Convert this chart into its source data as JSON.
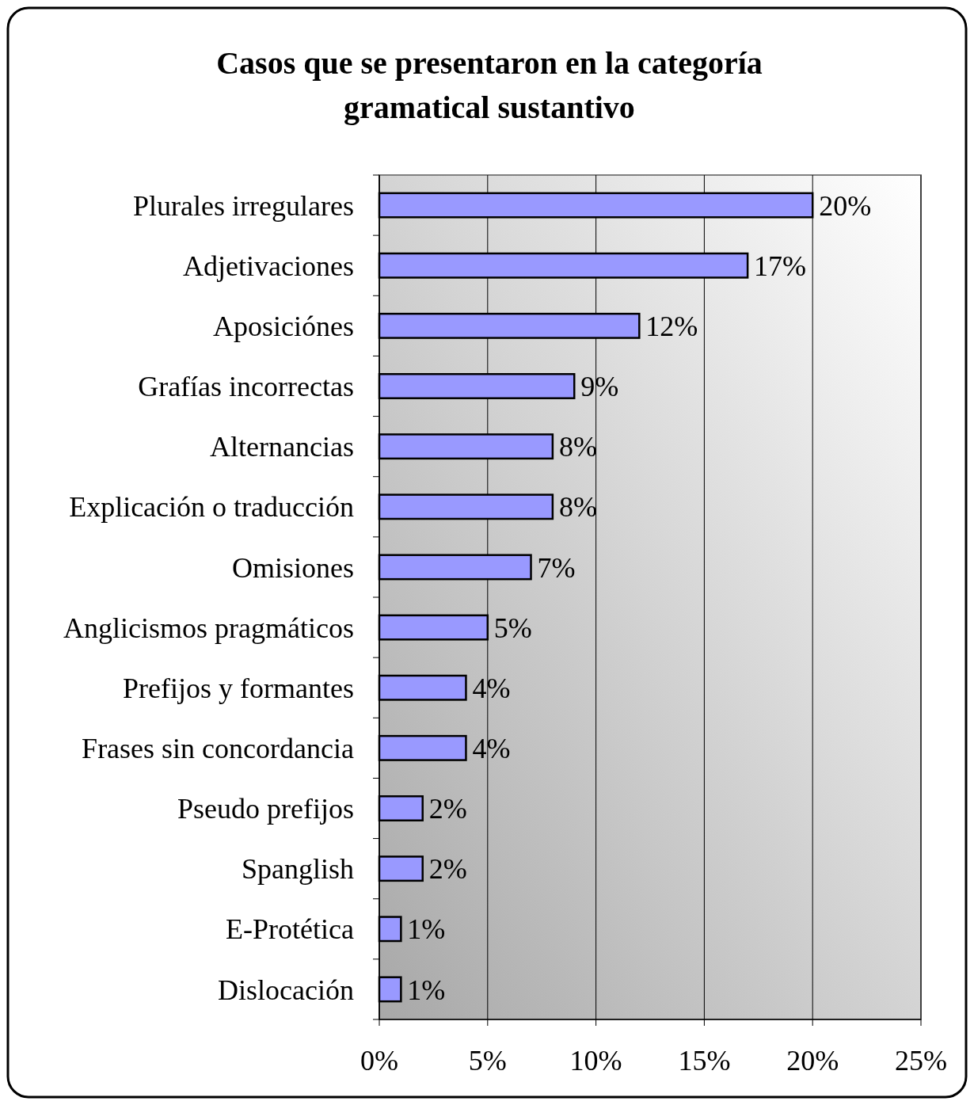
{
  "chart_data": {
    "type": "bar",
    "orientation": "horizontal",
    "title": "Casos que se presentaron en la categoría\ngramatical sustantivo",
    "categories": [
      "Plurales irregulares",
      "Adjetivaciones",
      "Aposiciónes",
      "Grafías incorrectas",
      "Alternancias",
      "Explicación o traducción",
      "Omisiones",
      "Anglicismos pragmáticos",
      "Prefijos y formantes",
      "Frases sin concordancia",
      "Pseudo prefijos",
      "Spanglish",
      "E-Protética",
      "Dislocación"
    ],
    "values": [
      20,
      17,
      12,
      9,
      8,
      8,
      7,
      5,
      4,
      4,
      2,
      2,
      1,
      1
    ],
    "value_labels": [
      "20%",
      "17%",
      "12%",
      "9%",
      "8%",
      "8%",
      "7%",
      "5%",
      "4%",
      "4%",
      "2%",
      "2%",
      "1%",
      "1%"
    ],
    "color": "#9999ff",
    "xlim": [
      0,
      25
    ],
    "xticks": [
      {
        "value": 0,
        "label": "0%"
      },
      {
        "value": 5,
        "label": "5%"
      },
      {
        "value": 10,
        "label": "10%"
      },
      {
        "value": 15,
        "label": "15%"
      },
      {
        "value": 20,
        "label": "20%"
      },
      {
        "value": 25,
        "label": "25%"
      }
    ],
    "grid": "x"
  }
}
